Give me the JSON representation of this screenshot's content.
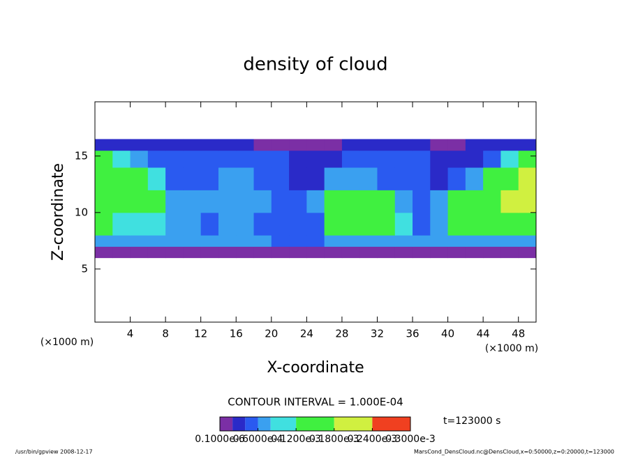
{
  "chart_data": {
    "type": "heatmap",
    "title": "density of cloud",
    "xlabel": "X-coordinate",
    "ylabel": "Z-coordinate",
    "xunit": "(×1000 m)",
    "yunit": "(×1000 m)",
    "xlim": [
      0,
      50
    ],
    "ylim": [
      0.3,
      19.8
    ],
    "xticks": [
      4,
      8,
      12,
      16,
      20,
      24,
      28,
      32,
      36,
      40,
      44,
      48
    ],
    "yticks": [
      5,
      10,
      15
    ],
    "x_edges": [
      0,
      2,
      4,
      6,
      8,
      10,
      12,
      14,
      16,
      18,
      20,
      22,
      24,
      26,
      28,
      30,
      32,
      34,
      36,
      38,
      40,
      42,
      44,
      46,
      48,
      50
    ],
    "z_edges": [
      6,
      7,
      8,
      10,
      12,
      14,
      15.5,
      16.5
    ],
    "values": [
      [
        1e-05,
        1e-05,
        1e-05,
        1e-05,
        1e-05,
        1e-05,
        1e-05,
        1e-05,
        1e-05,
        1e-05,
        1e-05,
        1e-05,
        1e-05,
        1e-05,
        1e-05,
        1e-05,
        1e-05,
        1e-05,
        1e-05,
        1e-05,
        1e-05,
        1e-05,
        1e-05,
        1e-05,
        1e-05
      ],
      [
        7e-05,
        7e-05,
        7e-05,
        7e-05,
        7e-05,
        7e-05,
        7e-05,
        7e-05,
        7e-05,
        7e-05,
        5e-05,
        5e-05,
        5e-05,
        7e-05,
        7e-05,
        7e-05,
        7e-05,
        7e-05,
        7e-05,
        7e-05,
        7e-05,
        7e-05,
        7e-05,
        7e-05,
        7e-05
      ],
      [
        0.00012,
        0.0001,
        0.0001,
        8e-05,
        7e-05,
        6e-05,
        5e-05,
        6e-05,
        6e-05,
        5e-05,
        5e-05,
        4e-05,
        5e-05,
        0.00012,
        0.00015,
        0.00015,
        0.00012,
        0.0001,
        5e-05,
        7e-05,
        0.00012,
        0.00015,
        0.00015,
        0.00015,
        0.00015
      ],
      [
        0.00015,
        0.00015,
        0.00015,
        0.00012,
        7e-05,
        6e-05,
        6e-05,
        7e-05,
        7e-05,
        6e-05,
        5e-05,
        4e-05,
        6e-05,
        0.00015,
        0.00015,
        0.00015,
        0.00012,
        7e-05,
        5e-05,
        7e-05,
        0.00012,
        0.00015,
        0.00015,
        0.00018,
        0.00018
      ],
      [
        0.00015,
        0.00015,
        0.00012,
        0.0001,
        5e-05,
        4e-05,
        5e-05,
        6e-05,
        6e-05,
        5e-05,
        4e-05,
        3e-05,
        3e-05,
        6e-05,
        6e-05,
        6e-05,
        5e-05,
        5e-05,
        5e-05,
        3e-05,
        5e-05,
        6e-05,
        0.00012,
        0.00015,
        0.00018
      ],
      [
        0.00012,
        0.0001,
        6e-05,
        5e-05,
        4e-05,
        4e-05,
        4e-05,
        5e-05,
        4e-05,
        4e-05,
        4e-05,
        3e-05,
        2e-05,
        3e-05,
        4e-05,
        4e-05,
        5e-05,
        5e-05,
        4e-05,
        3e-05,
        2e-05,
        3e-05,
        5e-05,
        0.0001,
        0.00012
      ],
      [
        3e-05,
        3e-05,
        3e-05,
        3e-05,
        3e-05,
        3e-05,
        3e-05,
        3e-05,
        3e-05,
        1e-05,
        1e-05,
        1e-05,
        1e-05,
        1e-05,
        3e-05,
        3e-05,
        3e-05,
        3e-05,
        3e-05,
        1e-05,
        1e-05,
        3e-05,
        3e-05,
        3e-05,
        3e-05
      ]
    ],
    "contour_interval": "CONTOUR INTERVAL = 1.000E-04",
    "time_label": "t=123000 s",
    "colorbar": {
      "levels": [
        1e-07,
        2e-05,
        4e-05,
        6e-05,
        8e-05,
        0.00012,
        0.00018,
        0.00024,
        0.0003
      ],
      "colors": [
        "#7b2fa5",
        "#2a2ac8",
        "#2a5af0",
        "#3aa0f0",
        "#40e0e0",
        "#40f040",
        "#d0f040",
        "#f04020"
      ],
      "ticks": [
        {
          "value": 1e-07,
          "label": "0.1000e-6"
        },
        {
          "value": 6e-05,
          "label": "0.6000e-4"
        },
        {
          "value": 0.00012,
          "label": "0.1200e-3"
        },
        {
          "value": 0.00018,
          "label": "0.1800e-3"
        },
        {
          "value": 0.00024,
          "label": "0.2400e-3"
        },
        {
          "value": 0.0003,
          "label": "0.3000e-3"
        }
      ]
    },
    "footer_left": "/usr/bin/gpview   2008-12-17",
    "footer_right": "MarsCond_DensCloud.nc@DensCloud,x=0:50000,z=0:20000,t=123000"
  }
}
